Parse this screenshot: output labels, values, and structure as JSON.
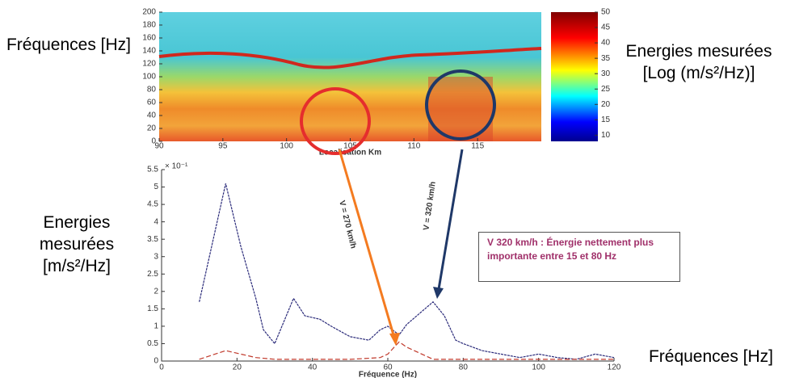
{
  "chart_data": [
    {
      "type": "heatmap",
      "ylabel": "Fréquences [Hz]",
      "xlabel": "Localisation Km",
      "colorbar_label": "Energies mesurées [Log (m/s²/Hz)]",
      "xlim": [
        90,
        120
      ],
      "xticks": [
        90,
        95,
        100,
        105,
        110,
        115
      ],
      "ylim": [
        0,
        200
      ],
      "yticks": [
        0,
        20,
        40,
        60,
        80,
        100,
        120,
        140,
        160,
        180,
        200
      ],
      "clim": [
        8,
        50
      ],
      "cticks": [
        10,
        15,
        20,
        25,
        30,
        35,
        40,
        45,
        50
      ]
    },
    {
      "type": "line",
      "ylabel": "Energies mesurées [m/s²/Hz]",
      "xlabel": "Fréquence (Hz)",
      "xlabel_right": "Fréquences [Hz]",
      "multiplier": "× 10⁻¹",
      "xlim": [
        0,
        120
      ],
      "xticks": [
        0,
        20,
        40,
        60,
        80,
        100,
        120
      ],
      "ylim": [
        0,
        5.5
      ],
      "yticks": [
        0,
        0.5,
        1,
        1.5,
        2,
        2.5,
        3,
        3.5,
        4,
        4.5,
        5,
        5.5
      ],
      "x": [
        10,
        17,
        21,
        25,
        27,
        30,
        35,
        38,
        42,
        45,
        50,
        55,
        58,
        60,
        63,
        65,
        72,
        75,
        78,
        80,
        85,
        90,
        95,
        100,
        105,
        110,
        115,
        120
      ],
      "series": [
        {
          "color": "#2b2b7a",
          "values": [
            1.7,
            5.1,
            3.3,
            1.8,
            0.9,
            0.5,
            1.8,
            1.3,
            1.2,
            1.0,
            0.7,
            0.6,
            0.9,
            1.0,
            0.75,
            1.05,
            1.7,
            1.3,
            0.6,
            0.5,
            0.3,
            0.2,
            0.1,
            0.2,
            0.1,
            0.05,
            0.2,
            0.1
          ]
        },
        {
          "color": "#c0392b",
          "values": [
            0.05,
            0.3,
            0.2,
            0.1,
            0.08,
            0.05,
            0.05,
            0.05,
            0.05,
            0.05,
            0.05,
            0.08,
            0.1,
            0.2,
            0.55,
            0.4,
            0.05,
            0.05,
            0.05,
            0.05,
            0.05,
            0.05,
            0.05,
            0.05,
            0.05,
            0.05,
            0.05,
            0.05
          ]
        }
      ],
      "annotations": [
        "V = 270 km/h",
        "V = 320 km/h",
        "V 320 km/h : Énergie nettement plus importante entre 15 et 80 Hz"
      ]
    }
  ]
}
